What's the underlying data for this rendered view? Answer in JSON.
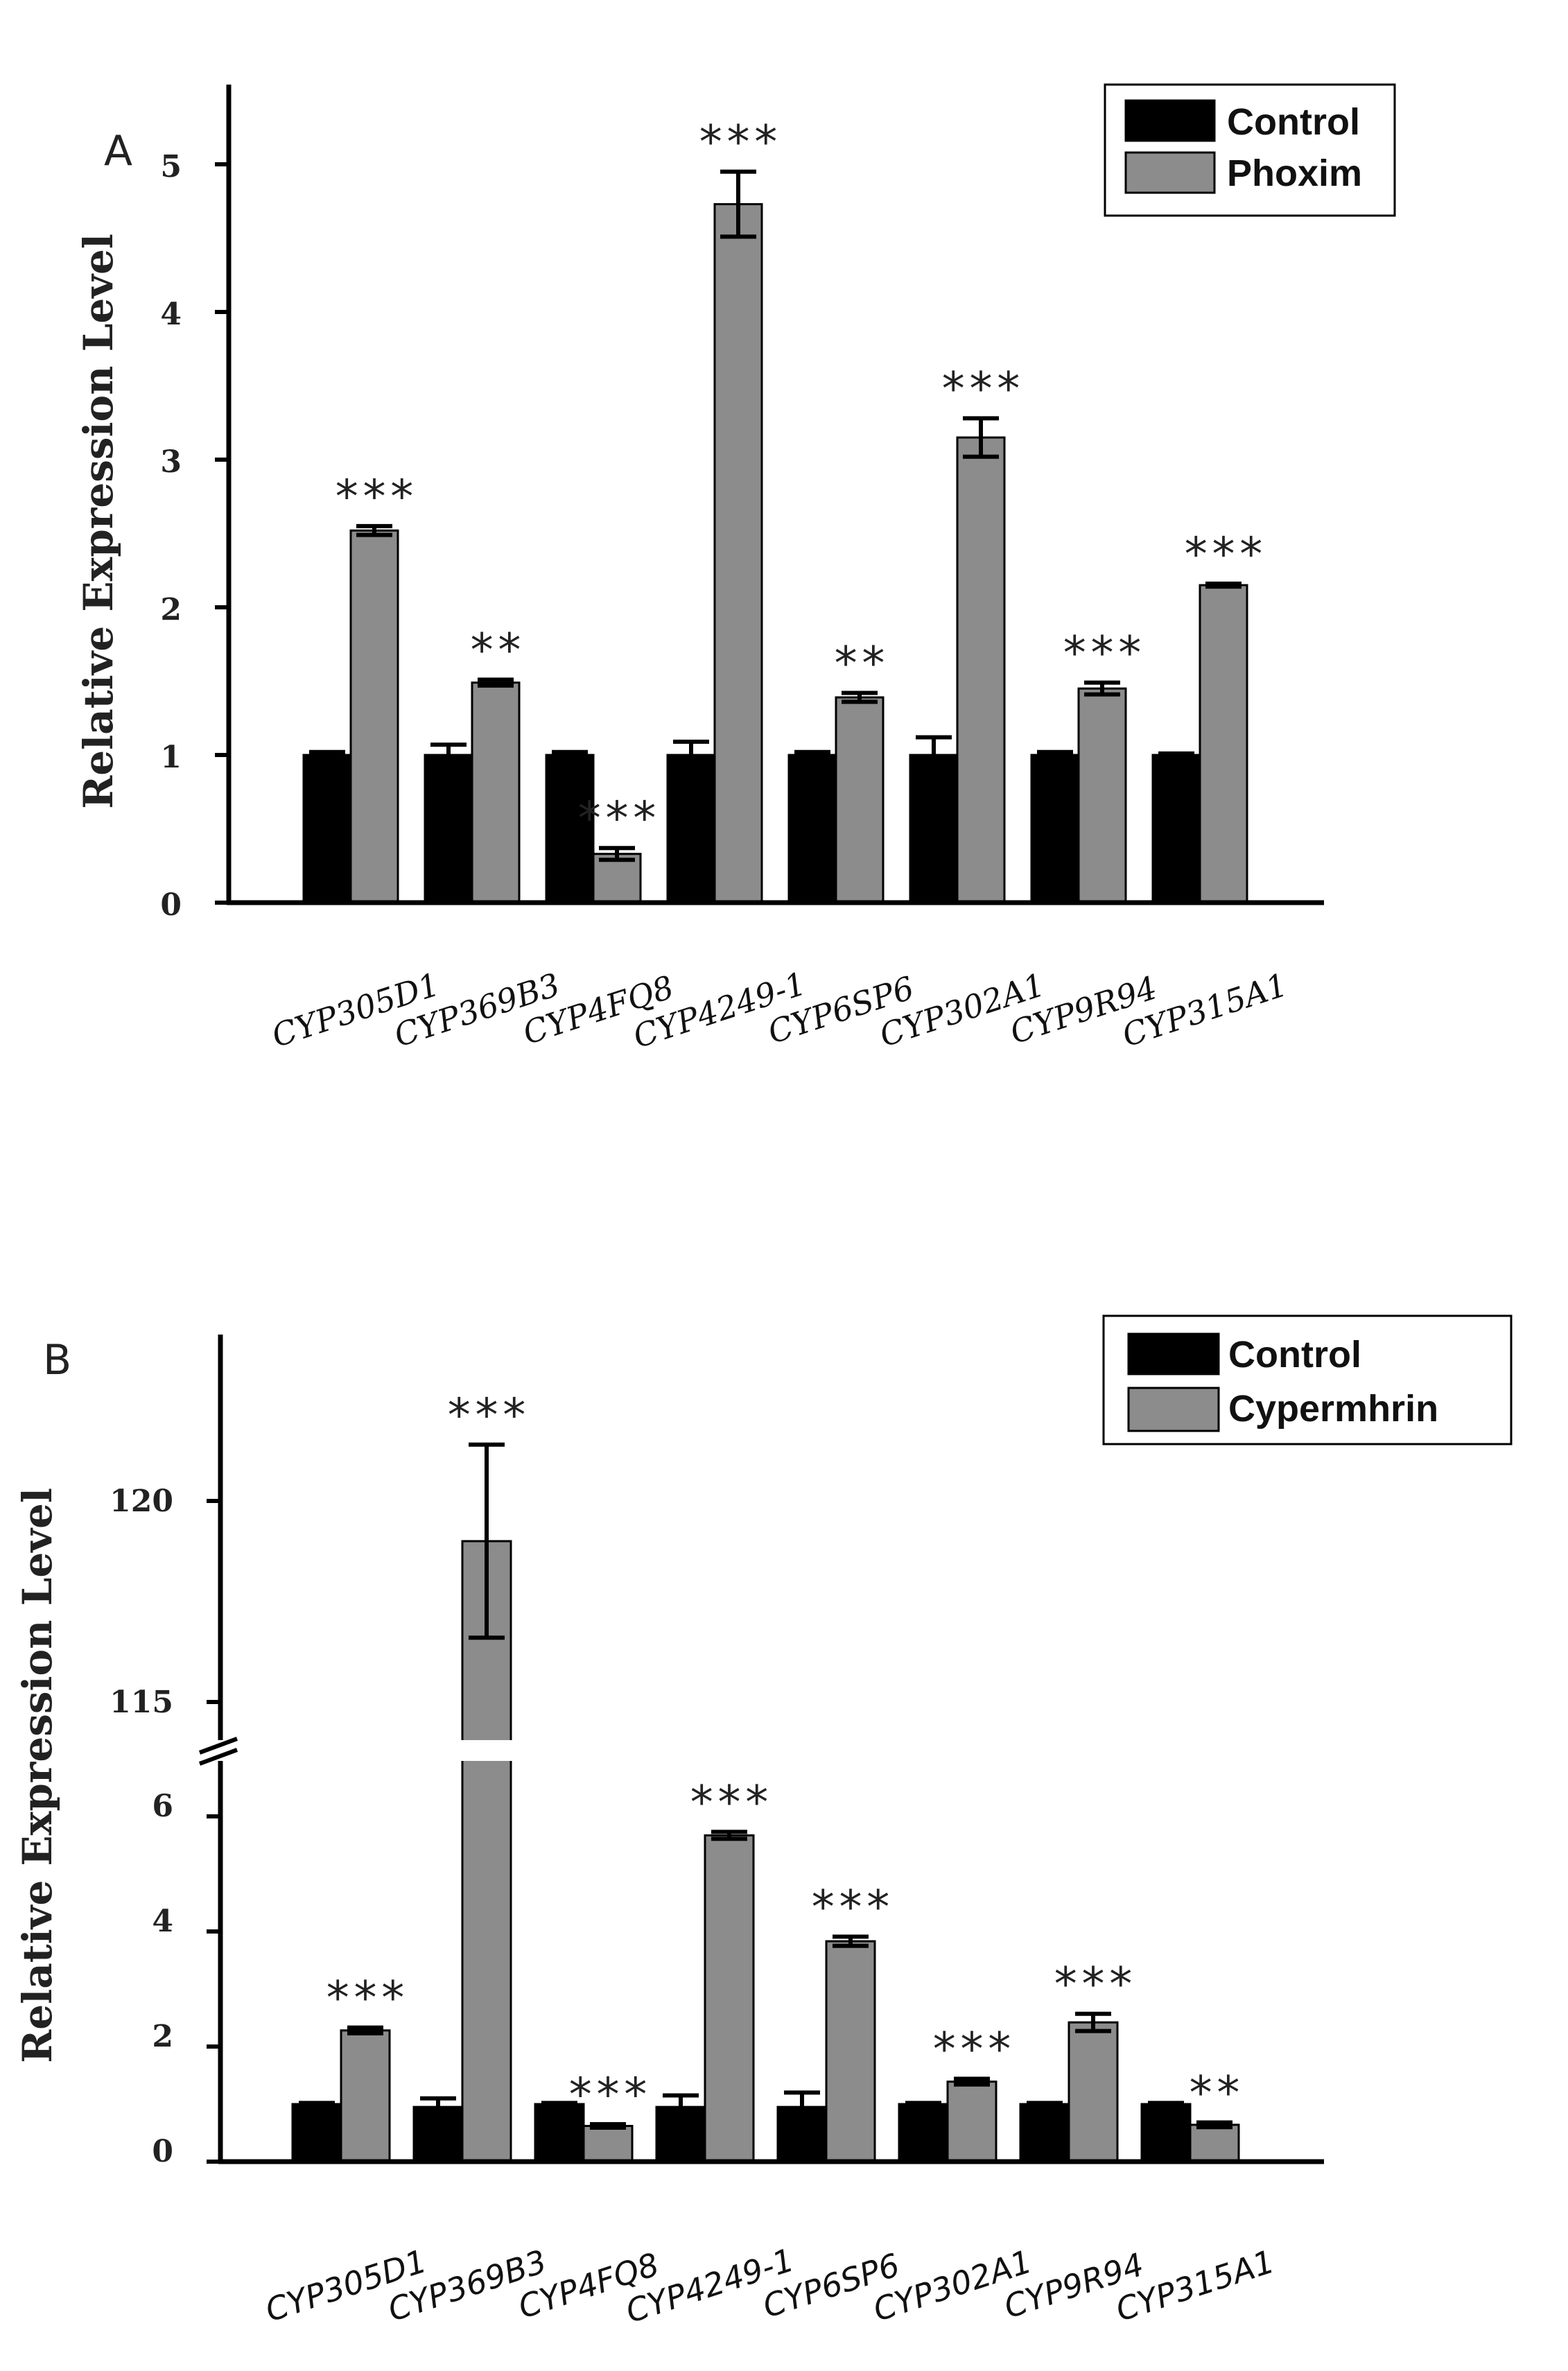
{
  "colors": {
    "control": "#000000",
    "treatment": "#8c8c8c",
    "axis": "#000000"
  },
  "panels": [
    {
      "panel": "A",
      "ylabel": "Relative Expression Level",
      "legend": [
        "Control",
        "Phoxim"
      ],
      "yticks": [
        "0",
        "1",
        "2",
        "3",
        "4",
        "5"
      ]
    },
    {
      "panel": "B",
      "ylabel": "Relative Expression Level",
      "legend": [
        "Control",
        "Cypermhrin"
      ],
      "yticks_lower": [
        "0",
        "2",
        "4",
        "6"
      ],
      "yticks_upper": [
        "115",
        "120"
      ]
    }
  ],
  "chart_data": [
    {
      "type": "bar",
      "panel": "A",
      "title": "",
      "xlabel": "",
      "ylabel": "Relative Expression Level",
      "ylim": [
        0,
        5.5
      ],
      "categories": [
        "CYP305D1",
        "CYP369B3",
        "CYP4FQ8",
        "CYP4249-1",
        "CYP6SP6",
        "CYP302A1",
        "CYP9R94",
        "CYP315A1"
      ],
      "series": [
        {
          "name": "Control",
          "values": [
            1.0,
            1.0,
            1.0,
            1.0,
            1.0,
            1.0,
            1.0,
            1.0
          ],
          "errors": [
            0.02,
            0.07,
            0.02,
            0.09,
            0.02,
            0.12,
            0.02,
            0.01
          ]
        },
        {
          "name": "Phoxim",
          "values": [
            2.52,
            1.49,
            0.33,
            4.73,
            1.39,
            3.15,
            1.45,
            2.15
          ],
          "errors": [
            0.03,
            0.02,
            0.04,
            0.22,
            0.03,
            0.13,
            0.04,
            0.01
          ]
        }
      ],
      "significance": [
        "***",
        "**",
        "***",
        "***",
        "**",
        "***",
        "***",
        "***"
      ],
      "legend_position": "top-right"
    },
    {
      "type": "bar",
      "panel": "B",
      "title": "",
      "xlabel": "",
      "ylabel": "Relative Expression Level",
      "ylim": [
        0,
        123
      ],
      "axis_break": [
        7.3,
        114.2
      ],
      "categories": [
        "CYP305D1",
        "CYP369B3",
        "CYP4FQ8",
        "CYP4249-1",
        "CYP6SP6",
        "CYP302A1",
        "CYP9R94",
        "CYP315A1"
      ],
      "series": [
        {
          "name": "Control",
          "values": [
            1.0,
            0.95,
            1.0,
            0.95,
            0.95,
            1.0,
            1.0,
            1.0
          ],
          "errors": [
            0.02,
            0.15,
            0.02,
            0.2,
            0.25,
            0.02,
            0.02,
            0.02
          ]
        },
        {
          "name": "Cypermhrin",
          "values": [
            2.28,
            119.0,
            0.62,
            5.67,
            3.83,
            1.39,
            2.42,
            0.64
          ],
          "errors": [
            0.05,
            2.4,
            0.03,
            0.06,
            0.08,
            0.05,
            0.15,
            0.04
          ]
        }
      ],
      "significance": [
        "***",
        "***",
        "***",
        "***",
        "***",
        "***",
        "***",
        "**"
      ],
      "legend_position": "top-right"
    }
  ]
}
